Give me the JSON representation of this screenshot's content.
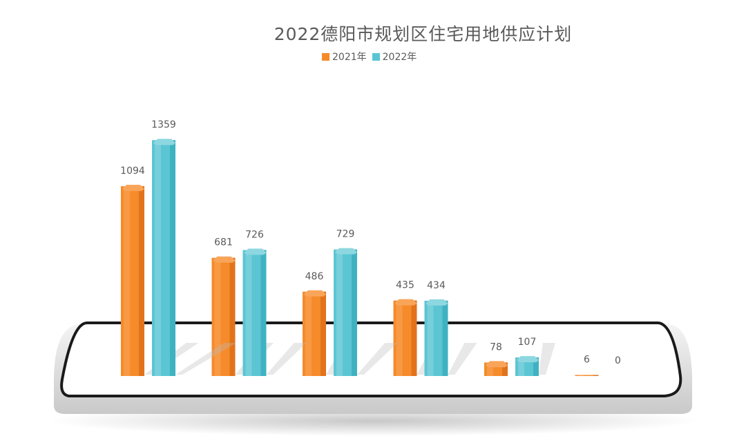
{
  "chart_data": {
    "type": "bar",
    "title": "2022德阳市规划区住宅用地供应计划",
    "categories": [
      "",
      "",
      "",
      "",
      "",
      ""
    ],
    "series": [
      {
        "name": "2021年",
        "color": "#F58B2A",
        "values": [
          1094,
          681,
          486,
          435,
          78,
          6
        ]
      },
      {
        "name": "2022年",
        "color": "#5BC5D3",
        "values": [
          1359,
          726,
          729,
          434,
          107,
          0
        ]
      }
    ],
    "data_labels": true,
    "legend": "top-center",
    "grid": false
  }
}
